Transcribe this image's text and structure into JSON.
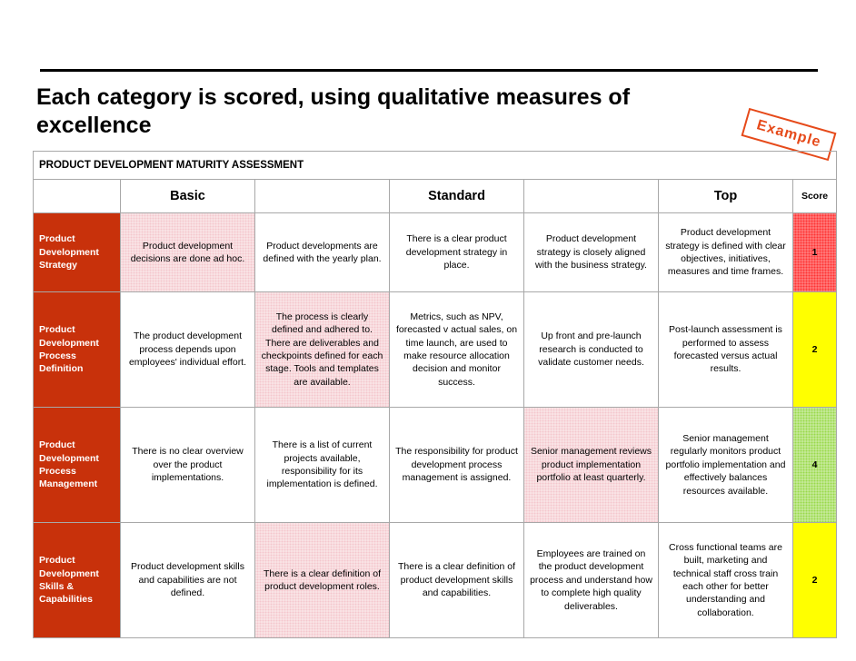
{
  "title": "Each category is scored, using qualitative measures of excellence",
  "stamp": "Example",
  "colors": {
    "row_label": "#c8310b",
    "stamp": "#e64a1a",
    "highlight": "#f4c7cd",
    "score_red": "#ff3333",
    "score_yellow": "#ffff00",
    "score_green": "#99d94a"
  },
  "assessment_title": "PRODUCT DEVELOPMENT MATURITY ASSESSMENT",
  "headers": {
    "basic": "Basic",
    "standard": "Standard",
    "top": "Top",
    "score": "Score"
  },
  "rows": [
    {
      "label": "Product Development Strategy",
      "cells": [
        "Product development decisions are done ad hoc.",
        "Product developments are defined with the yearly plan.",
        "There is a clear product development strategy in place.",
        "Product development strategy is closely aligned with the business strategy.",
        "Product development strategy is defined with clear objectives, initiatives, measures and time frames."
      ],
      "highlighted": [
        0
      ],
      "score": "1",
      "score_color": "red"
    },
    {
      "label": "Product Development Process Definition",
      "cells": [
        "The product development process depends upon employees' individual effort.",
        "The process is clearly defined and adhered to. There are deliverables and checkpoints defined for each stage. Tools and templates are available.",
        "Metrics, such as NPV, forecasted v actual sales, on time launch, are used to make resource allocation decision and monitor success.",
        "Up front and pre-launch research is conducted to validate customer needs.",
        "Post-launch assessment is performed to assess forecasted versus actual results."
      ],
      "highlighted": [
        1
      ],
      "score": "2",
      "score_color": "yellow"
    },
    {
      "label": "Product Development Process Management",
      "cells": [
        "There is no clear overview over the product implementations.",
        "There is a list of current projects available, responsibility for its implementation is defined.",
        "The responsibility for product development process management is assigned.",
        "Senior  management reviews product implementation portfolio at least quarterly.",
        "Senior  management regularly monitors product portfolio implementation and effectively balances resources available."
      ],
      "highlighted": [
        3
      ],
      "score": "4",
      "score_color": "green"
    },
    {
      "label": "Product Development Skills & Capabilities",
      "cells": [
        "Product development skills and capabilities are not defined.",
        "There is a clear definition of product development roles.",
        "There is a clear definition of product development skills and capabilities.",
        "Employees are trained on the product development process and understand how to complete high quality deliverables.",
        "Cross functional teams are built, marketing and technical staff cross train each other for better understanding and collaboration."
      ],
      "highlighted": [
        1
      ],
      "score": "2",
      "score_color": "yellow"
    }
  ]
}
